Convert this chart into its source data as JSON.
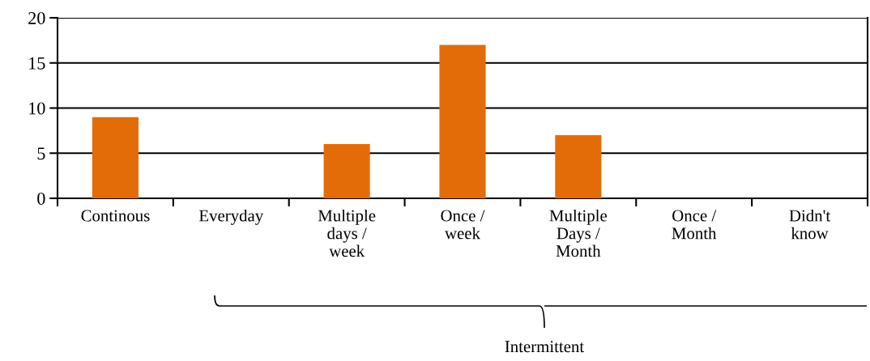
{
  "chart_data": {
    "type": "bar",
    "categories": [
      "Continous",
      "Everyday",
      "Multiple\ndays /\nweek",
      "Once /\nweek",
      "Multiple\nDays /\nMonth",
      "Once /\nMonth",
      "Didn't\nknow"
    ],
    "values": [
      9,
      0,
      6,
      17,
      7,
      0,
      0
    ],
    "color": "#e36c09",
    "ylim": [
      0,
      20
    ],
    "yticks": [
      0,
      5,
      10,
      15,
      20
    ],
    "grid": "y",
    "legend": false,
    "annotations": [
      "Intermittent"
    ]
  }
}
